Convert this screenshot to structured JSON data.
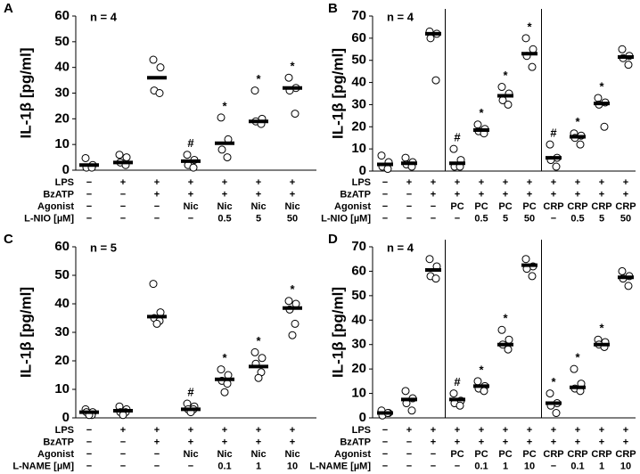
{
  "chart_data": [
    {
      "type": "dot",
      "panel": "A",
      "annotation": "n = 4",
      "y_label": "IL-1β [pg/ml]",
      "ylim": [
        0,
        60
      ],
      "yticks": [
        0,
        10,
        20,
        30,
        40,
        50,
        60
      ],
      "dividers": false,
      "values": [
        2,
        3,
        36,
        3.5,
        10.5,
        19,
        32
      ],
      "points": [
        [
          4.7,
          2,
          1,
          1
        ],
        [
          6,
          5,
          3,
          2
        ],
        [
          43,
          40,
          31,
          30
        ],
        [
          6,
          4,
          2,
          1
        ],
        [
          20.5,
          12,
          8,
          5
        ],
        [
          31,
          20,
          19,
          18
        ],
        [
          36,
          32,
          31,
          22
        ]
      ],
      "markers": [
        null,
        null,
        null,
        "#",
        "*",
        "*",
        "*"
      ],
      "row_labels": [
        "LPS",
        "BzATP",
        "Agonist",
        "L-NIO [µM]"
      ],
      "rows": [
        [
          "−",
          "+",
          "+",
          "+",
          "+",
          "+",
          "+"
        ],
        [
          "−",
          "−",
          "+",
          "+",
          "+",
          "+",
          "+"
        ],
        [
          "−",
          "−",
          "−",
          "Nic",
          "Nic",
          "Nic",
          "Nic"
        ],
        [
          "−",
          "−",
          "−",
          "−",
          "0.5",
          "5",
          "50"
        ]
      ]
    },
    {
      "type": "dot",
      "panel": "B",
      "annotation": "n = 4",
      "y_label": "IL-1β [pg/ml]",
      "ylim": [
        0,
        70
      ],
      "yticks": [
        0,
        10,
        20,
        30,
        40,
        50,
        60,
        70
      ],
      "dividers": true,
      "values": [
        3,
        3.5,
        62,
        3.5,
        18.5,
        34,
        53,
        6,
        15.5,
        30.5,
        51.5
      ],
      "points": [
        [
          7,
          4,
          2,
          1
        ],
        [
          6,
          4,
          3,
          2
        ],
        [
          63,
          62,
          60,
          41
        ],
        [
          10,
          5,
          2,
          2
        ],
        [
          21,
          19,
          18,
          17
        ],
        [
          38,
          35,
          32,
          30
        ],
        [
          60,
          55,
          52,
          47
        ],
        [
          12,
          6,
          5,
          2
        ],
        [
          17,
          16,
          15,
          12
        ],
        [
          33,
          31,
          30,
          20
        ],
        [
          55,
          52,
          51,
          48
        ]
      ],
      "markers": [
        null,
        null,
        null,
        "#",
        "*",
        "*",
        "*",
        "#",
        "*",
        "*",
        null
      ],
      "row_labels": [
        "LPS",
        "BzATP",
        "Agonist",
        "L-NIO [µM]"
      ],
      "rows": [
        [
          "−",
          "+",
          "+",
          "+",
          "+",
          "+",
          "+",
          "+",
          "+",
          "+",
          "+"
        ],
        [
          "−",
          "−",
          "+",
          "+",
          "+",
          "+",
          "+",
          "+",
          "+",
          "+",
          "+"
        ],
        [
          "−",
          "−",
          "−",
          "PC",
          "PC",
          "PC",
          "PC",
          "CRP",
          "CRP",
          "CRP",
          "CRP"
        ],
        [
          "−",
          "−",
          "−",
          "−",
          "0.5",
          "5",
          "50",
          "−",
          "0.5",
          "5",
          "50"
        ]
      ]
    },
    {
      "type": "dot",
      "panel": "C",
      "annotation": "n = 5",
      "y_label": "IL-1β [pg/ml]",
      "ylim": [
        0,
        60
      ],
      "yticks": [
        0,
        10,
        20,
        30,
        40,
        50,
        60
      ],
      "dividers": false,
      "values": [
        2,
        2.5,
        35.5,
        3,
        13.5,
        18,
        38.5
      ],
      "points": [
        [
          3,
          2,
          2,
          1,
          1
        ],
        [
          4,
          3,
          2,
          2,
          1
        ],
        [
          47,
          37,
          35,
          34,
          33
        ],
        [
          5,
          4,
          3,
          3,
          2
        ],
        [
          17,
          15,
          13,
          12,
          9
        ],
        [
          23,
          21,
          19,
          16,
          14
        ],
        [
          41,
          40,
          38,
          33,
          29
        ]
      ],
      "markers": [
        null,
        null,
        null,
        "#",
        "*",
        "*",
        "*"
      ],
      "row_labels": [
        "LPS",
        "BzATP",
        "Agonist",
        "L-NAME [µM]"
      ],
      "rows": [
        [
          "−",
          "+",
          "+",
          "+",
          "+",
          "+",
          "+"
        ],
        [
          "−",
          "−",
          "+",
          "+",
          "+",
          "+",
          "+"
        ],
        [
          "−",
          "−",
          "−",
          "Nic",
          "Nic",
          "Nic",
          "Nic"
        ],
        [
          "−",
          "−",
          "−",
          "−",
          "0.1",
          "1",
          "10"
        ]
      ]
    },
    {
      "type": "dot",
      "panel": "D",
      "annotation": "n = 4",
      "y_label": "IL-1β [pg/ml]",
      "ylim": [
        0,
        70
      ],
      "yticks": [
        0,
        10,
        20,
        30,
        40,
        50,
        60,
        70
      ],
      "dividers": true,
      "values": [
        2,
        7.5,
        60.5,
        7.5,
        13,
        30,
        62.5,
        6,
        12.5,
        30,
        57.5
      ],
      "points": [
        [
          3,
          2,
          1,
          2
        ],
        [
          11,
          8,
          6,
          3
        ],
        [
          65,
          62,
          58,
          57
        ],
        [
          10,
          7,
          6,
          5
        ],
        [
          15,
          13,
          12,
          11
        ],
        [
          36,
          32,
          30,
          28
        ],
        [
          65,
          62,
          61,
          58
        ],
        [
          10,
          6,
          5,
          2
        ],
        [
          20,
          14,
          12,
          11
        ],
        [
          32,
          31,
          30,
          29
        ],
        [
          60,
          58,
          57,
          54
        ]
      ],
      "markers": [
        null,
        null,
        null,
        "#",
        "*",
        "*",
        null,
        "*",
        "*",
        "*",
        null
      ],
      "row_labels": [
        "LPS",
        "BzATP",
        "Agonist",
        "L-NAME [µM]"
      ],
      "rows": [
        [
          "−",
          "+",
          "+",
          "+",
          "+",
          "+",
          "+",
          "+",
          "+",
          "+",
          "+"
        ],
        [
          "−",
          "−",
          "+",
          "+",
          "+",
          "+",
          "+",
          "+",
          "+",
          "+",
          "+"
        ],
        [
          "−",
          "−",
          "−",
          "PC",
          "PC",
          "PC",
          "PC",
          "CRP",
          "CRP",
          "CRP",
          "CRP"
        ],
        [
          "−",
          "−",
          "−",
          "−",
          "0.1",
          "1",
          "10",
          "−",
          "0.1",
          "1",
          "10"
        ]
      ]
    }
  ]
}
